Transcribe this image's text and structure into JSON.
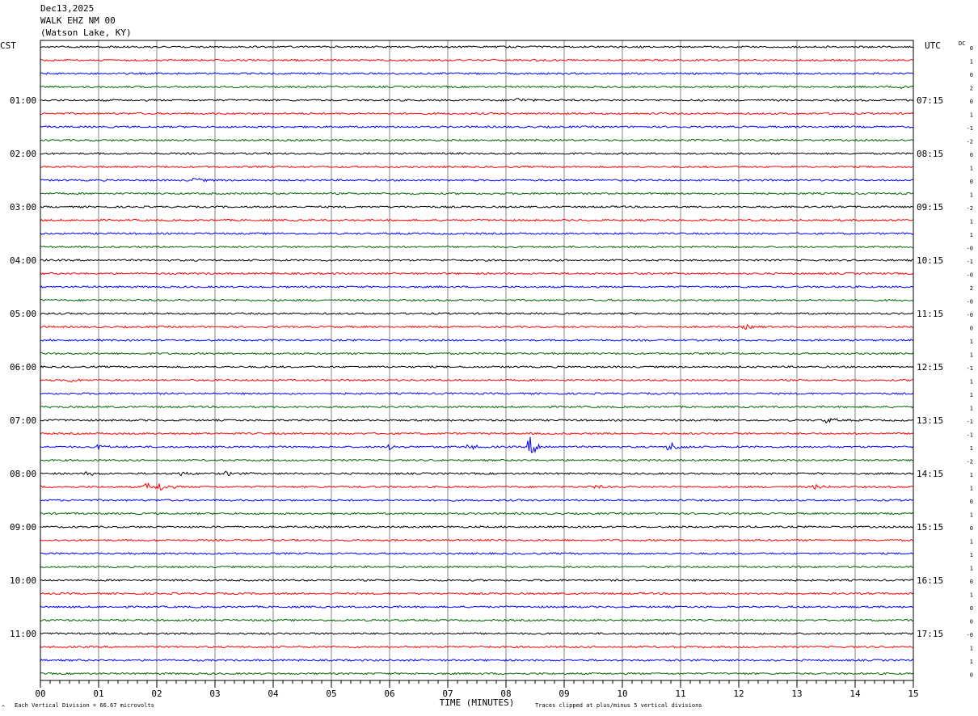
{
  "header": {
    "date": "Dec13,2025",
    "station": "WALK EHZ NM 00",
    "location": "(Watson Lake, KY)"
  },
  "left_timezone": "CST",
  "right_timezone": "UTC",
  "dc_label": "DC",
  "footer": {
    "vertical_division": "Each Vertical Division =   66.67 microvolts",
    "clip_note": "Traces clipped at plus/minus 5 vertical divisions",
    "corner_mark": "^"
  },
  "colors": {
    "trace_cycle": [
      "#000000",
      "#ff0000",
      "#0000ff",
      "#006400"
    ],
    "grid": "#808080",
    "frame": "#000000"
  },
  "chart_data": {
    "type": "line",
    "title": "",
    "xlabel": "TIME (MINUTES)",
    "ylabel": "",
    "xlim": [
      0,
      15
    ],
    "x_ticks": [
      "00",
      "01",
      "02",
      "03",
      "04",
      "05",
      "06",
      "07",
      "08",
      "09",
      "10",
      "11",
      "12",
      "13",
      "14",
      "15"
    ],
    "grid": true,
    "trace_count": 48,
    "left_hour_labels": [
      "01:00",
      "02:00",
      "03:00",
      "04:00",
      "05:00",
      "06:00",
      "07:00",
      "08:00",
      "09:00",
      "10:00",
      "11:00"
    ],
    "right_hour_labels": [
      "07:15",
      "08:15",
      "09:15",
      "10:15",
      "11:15",
      "12:15",
      "13:15",
      "14:15",
      "15:15",
      "16:15",
      "17:15"
    ],
    "dc_offsets": [
      "0",
      "1",
      "0",
      "2",
      "0",
      "1",
      "-1",
      "-2",
      "0",
      "1",
      "0",
      "1",
      "-2",
      "1",
      "1",
      "-0",
      "-1",
      "-0",
      "2",
      "-0",
      "-0",
      "0",
      "1",
      "1",
      "-1",
      "1",
      "1",
      "1",
      "-1",
      "-1",
      "1",
      "-2",
      "1",
      "1",
      "0",
      "1",
      "0",
      "1",
      "1",
      "1",
      "0",
      "1",
      "0",
      "0",
      "-0",
      "1",
      "1",
      "0"
    ],
    "events": [
      {
        "trace": 30,
        "minute": 8.4,
        "amplitude": 4.5
      },
      {
        "trace": 30,
        "minute": 10.8,
        "amplitude": 2.5
      },
      {
        "trace": 30,
        "minute": 7.35,
        "amplitude": 1.2
      },
      {
        "trace": 30,
        "minute": 6.0,
        "amplitude": 1.0
      },
      {
        "trace": 30,
        "minute": 1.0,
        "amplitude": 0.9
      },
      {
        "trace": 33,
        "minute": 1.8,
        "amplitude": 1.8
      },
      {
        "trace": 33,
        "minute": 2.05,
        "amplitude": 1.6
      },
      {
        "trace": 10,
        "minute": 2.6,
        "amplitude": 1.2
      },
      {
        "trace": 28,
        "minute": 13.5,
        "amplitude": 1.0
      },
      {
        "trace": 4,
        "minute": 8.2,
        "amplitude": 0.9
      },
      {
        "trace": 3,
        "minute": 14.8,
        "amplitude": 1.2
      },
      {
        "trace": 21,
        "minute": 12.1,
        "amplitude": 0.8
      },
      {
        "trace": 25,
        "minute": 0.5,
        "amplitude": 0.7
      },
      {
        "trace": 32,
        "minute": 0.8,
        "amplitude": 0.8
      },
      {
        "trace": 32,
        "minute": 2.4,
        "amplitude": 0.8
      },
      {
        "trace": 32,
        "minute": 3.2,
        "amplitude": 0.8
      },
      {
        "trace": 33,
        "minute": 9.5,
        "amplitude": 0.7
      },
      {
        "trace": 33,
        "minute": 13.3,
        "amplitude": 0.8
      }
    ]
  }
}
